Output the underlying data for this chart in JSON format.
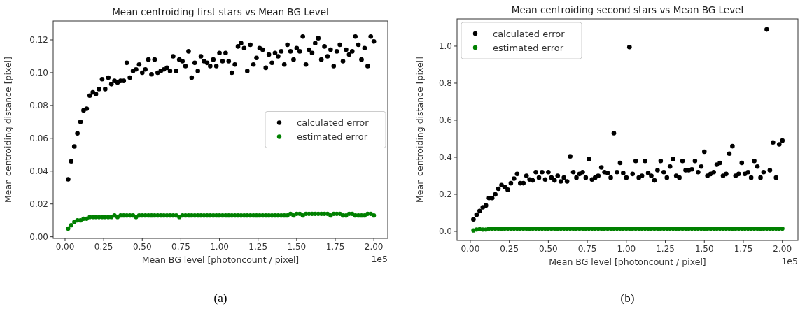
{
  "chart_data": [
    {
      "type": "scatter",
      "title": "Mean centroiding first stars vs Mean BG Level",
      "xlabel": "Mean BG level [photoncount / pixel]",
      "ylabel": "Mean centroiding distance [pixel]",
      "x": [
        0.02,
        0.04,
        0.06,
        0.08,
        0.1,
        0.12,
        0.14,
        0.16,
        0.18,
        0.2,
        0.22,
        0.24,
        0.26,
        0.28,
        0.3,
        0.32,
        0.34,
        0.36,
        0.38,
        0.4,
        0.42,
        0.44,
        0.46,
        0.48,
        0.5,
        0.52,
        0.54,
        0.56,
        0.58,
        0.6,
        0.62,
        0.64,
        0.66,
        0.68,
        0.7,
        0.72,
        0.74,
        0.76,
        0.78,
        0.8,
        0.82,
        0.84,
        0.86,
        0.88,
        0.9,
        0.92,
        0.94,
        0.96,
        0.98,
        1.0,
        1.02,
        1.04,
        1.06,
        1.08,
        1.1,
        1.12,
        1.14,
        1.16,
        1.18,
        1.2,
        1.22,
        1.24,
        1.26,
        1.28,
        1.3,
        1.32,
        1.34,
        1.36,
        1.38,
        1.4,
        1.42,
        1.44,
        1.46,
        1.48,
        1.5,
        1.52,
        1.54,
        1.56,
        1.58,
        1.6,
        1.62,
        1.64,
        1.66,
        1.68,
        1.7,
        1.72,
        1.74,
        1.76,
        1.78,
        1.8,
        1.82,
        1.84,
        1.86,
        1.88,
        1.9,
        1.92,
        1.94,
        1.96,
        1.98,
        2.0
      ],
      "series": [
        {
          "name": "calculated error",
          "color": "#000000",
          "values": [
            0.035,
            0.046,
            0.055,
            0.063,
            0.07,
            0.077,
            0.078,
            0.086,
            0.088,
            0.087,
            0.09,
            0.096,
            0.09,
            0.097,
            0.093,
            0.095,
            0.094,
            0.095,
            0.095,
            0.106,
            0.097,
            0.101,
            0.102,
            0.105,
            0.1,
            0.102,
            0.108,
            0.099,
            0.108,
            0.1,
            0.101,
            0.102,
            0.103,
            0.101,
            0.11,
            0.101,
            0.108,
            0.107,
            0.104,
            0.113,
            0.097,
            0.106,
            0.101,
            0.11,
            0.107,
            0.106,
            0.104,
            0.108,
            0.104,
            0.112,
            0.107,
            0.112,
            0.107,
            0.1,
            0.105,
            0.116,
            0.118,
            0.115,
            0.101,
            0.117,
            0.105,
            0.109,
            0.115,
            0.114,
            0.103,
            0.111,
            0.106,
            0.112,
            0.11,
            0.113,
            0.105,
            0.117,
            0.113,
            0.108,
            0.115,
            0.113,
            0.122,
            0.105,
            0.114,
            0.112,
            0.118,
            0.121,
            0.108,
            0.116,
            0.11,
            0.114,
            0.104,
            0.113,
            0.117,
            0.107,
            0.114,
            0.111,
            0.113,
            0.122,
            0.117,
            0.108,
            0.115,
            0.104,
            0.122,
            0.119
          ]
        },
        {
          "name": "estimated error",
          "color": "#008000",
          "values": [
            0.005,
            0.007,
            0.009,
            0.01,
            0.01,
            0.011,
            0.011,
            0.012,
            0.012,
            0.012,
            0.012,
            0.012,
            0.012,
            0.012,
            0.012,
            0.013,
            0.012,
            0.013,
            0.013,
            0.013,
            0.013,
            0.013,
            0.012,
            0.013,
            0.013,
            0.013,
            0.013,
            0.013,
            0.013,
            0.013,
            0.013,
            0.013,
            0.013,
            0.013,
            0.013,
            0.013,
            0.012,
            0.013,
            0.013,
            0.013,
            0.013,
            0.013,
            0.013,
            0.013,
            0.013,
            0.013,
            0.013,
            0.013,
            0.013,
            0.013,
            0.013,
            0.013,
            0.013,
            0.013,
            0.013,
            0.013,
            0.013,
            0.013,
            0.013,
            0.013,
            0.013,
            0.013,
            0.013,
            0.013,
            0.013,
            0.013,
            0.013,
            0.013,
            0.013,
            0.013,
            0.013,
            0.013,
            0.014,
            0.013,
            0.014,
            0.014,
            0.013,
            0.014,
            0.014,
            0.014,
            0.014,
            0.014,
            0.014,
            0.014,
            0.014,
            0.013,
            0.014,
            0.014,
            0.014,
            0.013,
            0.013,
            0.014,
            0.014,
            0.013,
            0.013,
            0.013,
            0.013,
            0.014,
            0.014,
            0.013
          ]
        }
      ],
      "xlim": [
        -0.077,
        2.09
      ],
      "xticks": [
        {
          "value": 0,
          "label": "0.00"
        },
        {
          "value": 0.25,
          "label": "0.25"
        },
        {
          "value": 0.5,
          "label": "0.50"
        },
        {
          "value": 0.75,
          "label": "0.75"
        },
        {
          "value": 1,
          "label": "1.00"
        },
        {
          "value": 1.25,
          "label": "1.25"
        },
        {
          "value": 1.5,
          "label": "1.50"
        },
        {
          "value": 1.75,
          "label": "1.75"
        },
        {
          "value": 2,
          "label": "2.00"
        }
      ],
      "ylim": [
        -0.001,
        0.1315
      ],
      "yticks": [
        {
          "value": 0,
          "label": "0.00"
        },
        {
          "value": 0.02,
          "label": "0.02"
        },
        {
          "value": 0.04,
          "label": "0.04"
        },
        {
          "value": 0.06,
          "label": "0.06"
        },
        {
          "value": 0.08,
          "label": "0.08"
        },
        {
          "value": 0.1,
          "label": "0.10"
        },
        {
          "value": 0.12,
          "label": "0.12"
        }
      ],
      "grid": false,
      "legend": "right",
      "marker": "circle",
      "annotations": [
        "1e5",
        "(a)"
      ]
    },
    {
      "type": "scatter",
      "title": "Mean centroiding second stars vs Mean BG Level",
      "xlabel": "Mean BG level [photoncount / pixel]",
      "ylabel": "Mean centroiding distance [pixel]",
      "x": [
        0.02,
        0.04,
        0.06,
        0.08,
        0.1,
        0.12,
        0.14,
        0.16,
        0.18,
        0.2,
        0.22,
        0.24,
        0.26,
        0.28,
        0.3,
        0.32,
        0.34,
        0.36,
        0.38,
        0.4,
        0.42,
        0.44,
        0.46,
        0.48,
        0.5,
        0.52,
        0.54,
        0.56,
        0.58,
        0.6,
        0.62,
        0.64,
        0.66,
        0.68,
        0.7,
        0.72,
        0.74,
        0.76,
        0.78,
        0.8,
        0.82,
        0.84,
        0.86,
        0.88,
        0.9,
        0.92,
        0.94,
        0.96,
        0.98,
        1.0,
        1.02,
        1.04,
        1.06,
        1.08,
        1.1,
        1.12,
        1.14,
        1.16,
        1.18,
        1.2,
        1.22,
        1.24,
        1.26,
        1.28,
        1.3,
        1.32,
        1.34,
        1.36,
        1.38,
        1.4,
        1.42,
        1.44,
        1.46,
        1.48,
        1.5,
        1.52,
        1.54,
        1.56,
        1.58,
        1.6,
        1.62,
        1.64,
        1.66,
        1.68,
        1.7,
        1.72,
        1.74,
        1.76,
        1.78,
        1.8,
        1.82,
        1.84,
        1.86,
        1.88,
        1.9,
        1.92,
        1.94,
        1.96,
        1.98,
        2.0
      ],
      "series": [
        {
          "name": "calculated error",
          "color": "#000000",
          "values": [
            0.065,
            0.09,
            0.11,
            0.13,
            0.14,
            0.18,
            0.18,
            0.2,
            0.23,
            0.25,
            0.24,
            0.225,
            0.26,
            0.285,
            0.31,
            0.26,
            0.26,
            0.3,
            0.28,
            0.275,
            0.32,
            0.29,
            0.32,
            0.28,
            0.32,
            0.29,
            0.275,
            0.3,
            0.27,
            0.29,
            0.27,
            0.405,
            0.32,
            0.29,
            0.31,
            0.32,
            0.29,
            0.39,
            0.28,
            0.29,
            0.3,
            0.345,
            0.32,
            0.315,
            0.29,
            0.53,
            0.32,
            0.37,
            0.315,
            0.29,
            0.995,
            0.31,
            0.38,
            0.29,
            0.3,
            0.38,
            0.315,
            0.3,
            0.275,
            0.33,
            0.38,
            0.32,
            0.29,
            0.35,
            0.39,
            0.3,
            0.29,
            0.38,
            0.33,
            0.33,
            0.335,
            0.38,
            0.32,
            0.35,
            0.43,
            0.3,
            0.31,
            0.32,
            0.36,
            0.37,
            0.3,
            0.31,
            0.42,
            0.46,
            0.3,
            0.31,
            0.37,
            0.31,
            0.32,
            0.29,
            0.38,
            0.35,
            0.29,
            0.32,
            1.09,
            0.33,
            0.48,
            0.29,
            0.47,
            0.49
          ]
        },
        {
          "name": "estimated error",
          "color": "#008000",
          "values": [
            0.005,
            0.01,
            0.012,
            0.01,
            0.01,
            0.015,
            0.015,
            0.015,
            0.015,
            0.015,
            0.015,
            0.015,
            0.015,
            0.015,
            0.015,
            0.015,
            0.015,
            0.015,
            0.015,
            0.015,
            0.015,
            0.015,
            0.015,
            0.015,
            0.015,
            0.015,
            0.015,
            0.015,
            0.015,
            0.015,
            0.015,
            0.015,
            0.015,
            0.015,
            0.015,
            0.015,
            0.015,
            0.015,
            0.015,
            0.015,
            0.015,
            0.015,
            0.015,
            0.015,
            0.015,
            0.015,
            0.015,
            0.015,
            0.015,
            0.015,
            0.015,
            0.015,
            0.015,
            0.015,
            0.015,
            0.015,
            0.015,
            0.015,
            0.015,
            0.015,
            0.015,
            0.015,
            0.015,
            0.015,
            0.015,
            0.015,
            0.015,
            0.015,
            0.015,
            0.015,
            0.015,
            0.015,
            0.015,
            0.015,
            0.015,
            0.015,
            0.015,
            0.015,
            0.015,
            0.015,
            0.015,
            0.015,
            0.015,
            0.015,
            0.015,
            0.015,
            0.015,
            0.015,
            0.015,
            0.015,
            0.015,
            0.015,
            0.015,
            0.015,
            0.015,
            0.015,
            0.015,
            0.015,
            0.015,
            0.015
          ]
        }
      ],
      "xlim": [
        -0.085,
        2.1
      ],
      "xticks": [
        {
          "value": 0,
          "label": "0.00"
        },
        {
          "value": 0.25,
          "label": "0.25"
        },
        {
          "value": 0.5,
          "label": "0.50"
        },
        {
          "value": 0.75,
          "label": "0.75"
        },
        {
          "value": 1,
          "label": "1.00"
        },
        {
          "value": 1.25,
          "label": "1.25"
        },
        {
          "value": 1.5,
          "label": "1.50"
        },
        {
          "value": 1.75,
          "label": "1.75"
        },
        {
          "value": 2,
          "label": "2.00"
        }
      ],
      "ylim": [
        -0.049,
        1.147
      ],
      "yticks": [
        {
          "value": 0,
          "label": "0.0"
        },
        {
          "value": 0.2,
          "label": "0.2"
        },
        {
          "value": 0.4,
          "label": "0.4"
        },
        {
          "value": 0.6,
          "label": "0.6"
        },
        {
          "value": 0.8,
          "label": "0.8"
        },
        {
          "value": 1,
          "label": "1.0"
        }
      ],
      "grid": false,
      "legend": "top left",
      "marker": "circle",
      "annotations": [
        "1e5",
        "(b)"
      ]
    }
  ]
}
